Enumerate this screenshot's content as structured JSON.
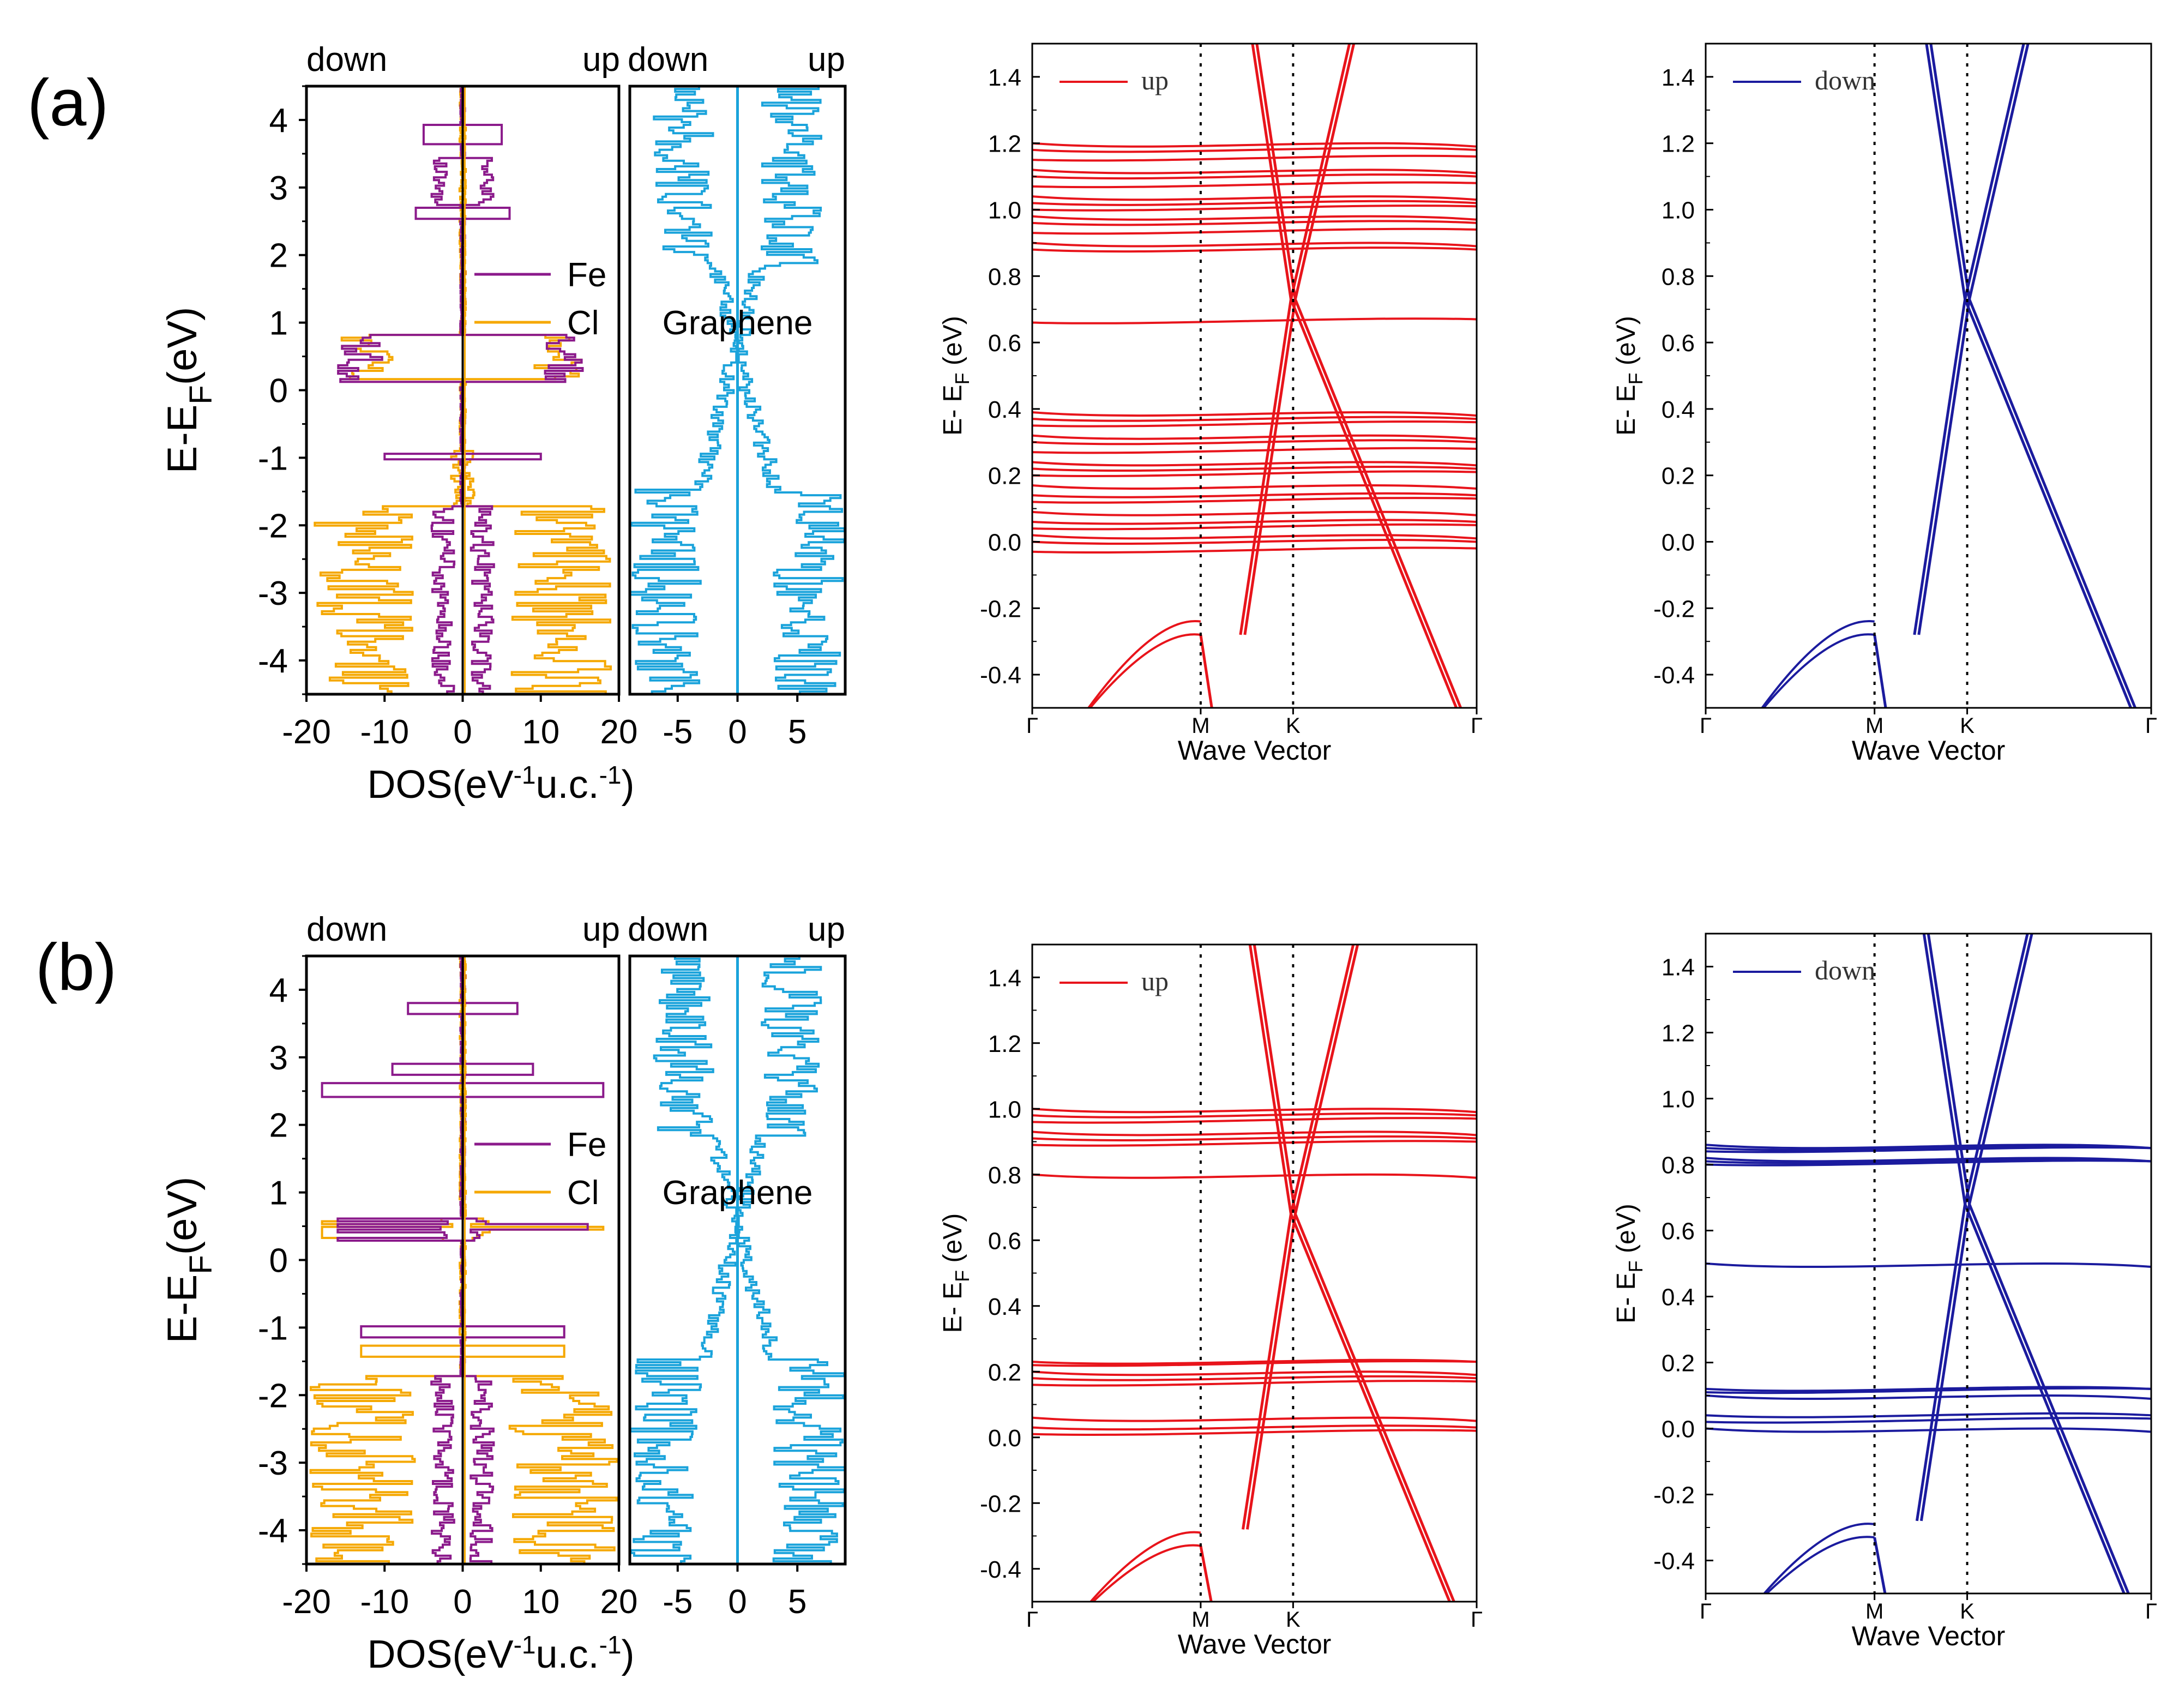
{
  "panels": [
    {
      "label": "(a)",
      "dos": {
        "left_box": {
          "x_ticks": [
            "-20",
            "-10",
            "0",
            "10",
            "20"
          ],
          "xlim": [
            -20,
            20
          ]
        },
        "right_box": {
          "x_ticks": [
            "-5",
            "0",
            "5"
          ],
          "xlim": [
            -9,
            9
          ]
        },
        "yticks": [
          "4",
          "3",
          "2",
          "1",
          "0",
          "-1",
          "-2",
          "-3",
          "-4"
        ],
        "ylim": [
          -4.5,
          4.5
        ],
        "ylabel": "E-E_F(eV)",
        "xlabel": "DOS(eV^-1u.c.^-1)",
        "top_labels": [
          "down",
          "up",
          "down",
          "up"
        ],
        "legend": [
          {
            "name": "Fe",
            "color": "#8B1A8B"
          },
          {
            "name": "Cl",
            "color": "#F5A800"
          }
        ],
        "graphene_label": "Graphene",
        "graphene_color": "#1AA3DB",
        "variant": "a"
      },
      "bands_up": {
        "legend": "up",
        "color": "#E8141B",
        "ylabel": "E- E_F (eV)",
        "xlabel": "Wave Vector",
        "k_labels": [
          "Γ",
          "M",
          "K",
          "Γ"
        ],
        "yticks": [
          "1.4",
          "1.2",
          "1.0",
          "0.8",
          "0.6",
          "0.4",
          "0.2",
          "0.0",
          "-0.2",
          "-0.4"
        ],
        "ylim": [
          -0.5,
          1.5
        ],
        "variant": "a_up"
      },
      "bands_down": {
        "legend": "down",
        "color": "#1B1B9E",
        "ylabel": "E- E_F (eV)",
        "xlabel": "Wave Vector",
        "k_labels": [
          "Γ",
          "M",
          "K",
          "Γ"
        ],
        "yticks": [
          "1.4",
          "1.2",
          "1.0",
          "0.8",
          "0.6",
          "0.4",
          "0.2",
          "0.0",
          "-0.2",
          "-0.4"
        ],
        "ylim": [
          -0.5,
          1.5
        ],
        "variant": "a_down"
      }
    },
    {
      "label": "(b)",
      "dos": {
        "left_box": {
          "x_ticks": [
            "-20",
            "-10",
            "0",
            "10",
            "20"
          ],
          "xlim": [
            -20,
            20
          ]
        },
        "right_box": {
          "x_ticks": [
            "-5",
            "0",
            "5"
          ],
          "xlim": [
            -9,
            9
          ]
        },
        "yticks": [
          "4",
          "3",
          "2",
          "1",
          "0",
          "-1",
          "-2",
          "-3",
          "-4"
        ],
        "ylim": [
          -4.5,
          4.5
        ],
        "ylabel": "E-E_F(eV)",
        "xlabel": "DOS(eV^-1u.c.^-1)",
        "top_labels": [
          "down",
          "up",
          "down",
          "up"
        ],
        "legend": [
          {
            "name": "Fe",
            "color": "#8B1A8B"
          },
          {
            "name": "Cl",
            "color": "#F5A800"
          }
        ],
        "graphene_label": "Graphene",
        "graphene_color": "#1AA3DB",
        "variant": "b"
      },
      "bands_up": {
        "legend": "up",
        "color": "#E8141B",
        "ylabel": "E- E_F (eV)",
        "xlabel": "Wave Vector",
        "k_labels": [
          "Γ",
          "M",
          "K",
          "Γ"
        ],
        "yticks": [
          "1.4",
          "1.2",
          "1.0",
          "0.8",
          "0.6",
          "0.4",
          "0.2",
          "0.0",
          "-0.2",
          "-0.4"
        ],
        "ylim": [
          -0.5,
          1.5
        ],
        "variant": "b_up"
      },
      "bands_down": {
        "legend": "down",
        "color": "#1B1B9E",
        "ylabel": "E- E_F (eV)",
        "xlabel": "Wave Vector",
        "k_labels": [
          "Γ",
          "M",
          "K",
          "Γ"
        ],
        "yticks": [
          "1.4",
          "1.2",
          "1.0",
          "0.8",
          "0.6",
          "0.4",
          "0.2",
          "0.0",
          "-0.2",
          "-0.4"
        ],
        "ylim": [
          -0.5,
          1.5
        ],
        "variant": "b_down"
      }
    }
  ],
  "chart_data": [
    {
      "type": "line",
      "panel": "(a)",
      "name": "DOS",
      "ylim": [
        -4.5,
        4.5
      ],
      "xlim_left": [
        -20,
        20
      ],
      "xlim_right": [
        -9,
        9
      ],
      "series": [
        {
          "name": "Fe"
        },
        {
          "name": "Cl"
        },
        {
          "name": "Graphene"
        }
      ]
    },
    {
      "type": "line",
      "panel": "(a)",
      "name": "band structure spin up",
      "ylim": [
        -0.5,
        1.5
      ],
      "x_categories": [
        "Γ",
        "M",
        "K",
        "Γ"
      ],
      "dirac_point": 0.73,
      "series": [
        {
          "name": "up"
        }
      ]
    },
    {
      "type": "line",
      "panel": "(a)",
      "name": "band structure spin down",
      "ylim": [
        -0.5,
        1.5
      ],
      "x_categories": [
        "Γ",
        "M",
        "K",
        "Γ"
      ],
      "dirac_point": 0.73,
      "series": [
        {
          "name": "down"
        }
      ]
    },
    {
      "type": "line",
      "panel": "(b)",
      "name": "DOS",
      "ylim": [
        -4.5,
        4.5
      ],
      "xlim_left": [
        -20,
        20
      ],
      "xlim_right": [
        -9,
        9
      ],
      "series": [
        {
          "name": "Fe"
        },
        {
          "name": "Cl"
        },
        {
          "name": "Graphene"
        }
      ]
    },
    {
      "type": "line",
      "panel": "(b)",
      "name": "band structure spin up",
      "ylim": [
        -0.5,
        1.5
      ],
      "x_categories": [
        "Γ",
        "M",
        "K",
        "Γ"
      ],
      "dirac_point": 0.68,
      "series": [
        {
          "name": "up"
        }
      ]
    },
    {
      "type": "line",
      "panel": "(b)",
      "name": "band structure spin down",
      "ylim": [
        -0.5,
        1.5
      ],
      "x_categories": [
        "Γ",
        "M",
        "K",
        "Γ"
      ],
      "dirac_point": 0.68,
      "series": [
        {
          "name": "down"
        }
      ]
    }
  ]
}
